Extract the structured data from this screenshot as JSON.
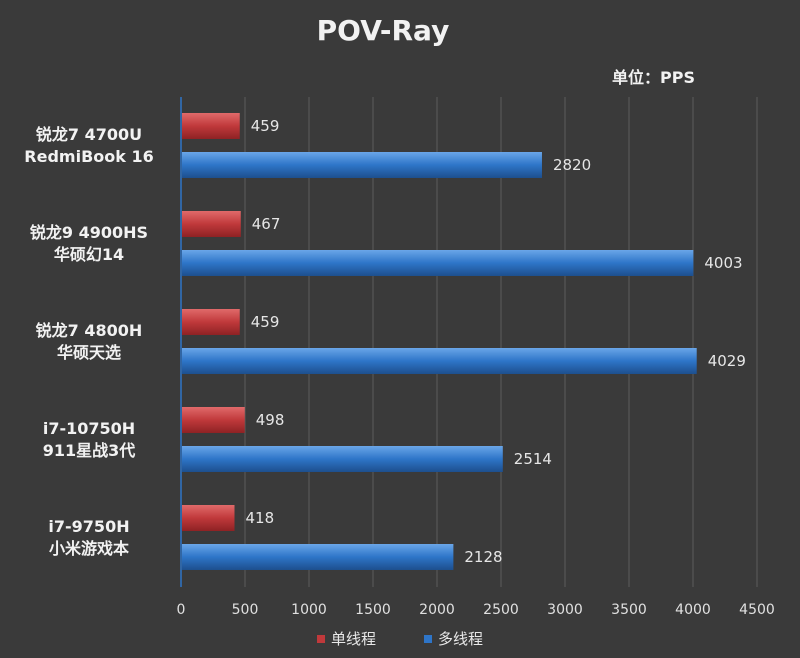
{
  "chart_data": {
    "type": "bar",
    "orientation": "horizontal",
    "title": "POV-Ray",
    "unit": "单位：PPS",
    "categories": [
      {
        "line1": "锐龙7 4700U",
        "line2": "RedmiBook 16"
      },
      {
        "line1": "锐龙9 4900HS",
        "line2": "华硕幻14"
      },
      {
        "line1": "锐龙7 4800H",
        "line2": "华硕天选"
      },
      {
        "line1": "i7-10750H",
        "line2": "911星战3代"
      },
      {
        "line1": "i7-9750H",
        "line2": "小米游戏本"
      }
    ],
    "series": [
      {
        "name": "单线程",
        "color": "#c0393b",
        "values": [
          459,
          467,
          459,
          498,
          418
        ]
      },
      {
        "name": "多线程",
        "color": "#2e75c8",
        "values": [
          2820,
          4003,
          4029,
          2514,
          2128
        ]
      }
    ],
    "xlim": [
      0,
      4500
    ],
    "xticks": [
      0,
      500,
      1000,
      1500,
      2000,
      2500,
      3000,
      3500,
      4000,
      4500
    ],
    "grid": true,
    "legend_position": "bottom"
  }
}
